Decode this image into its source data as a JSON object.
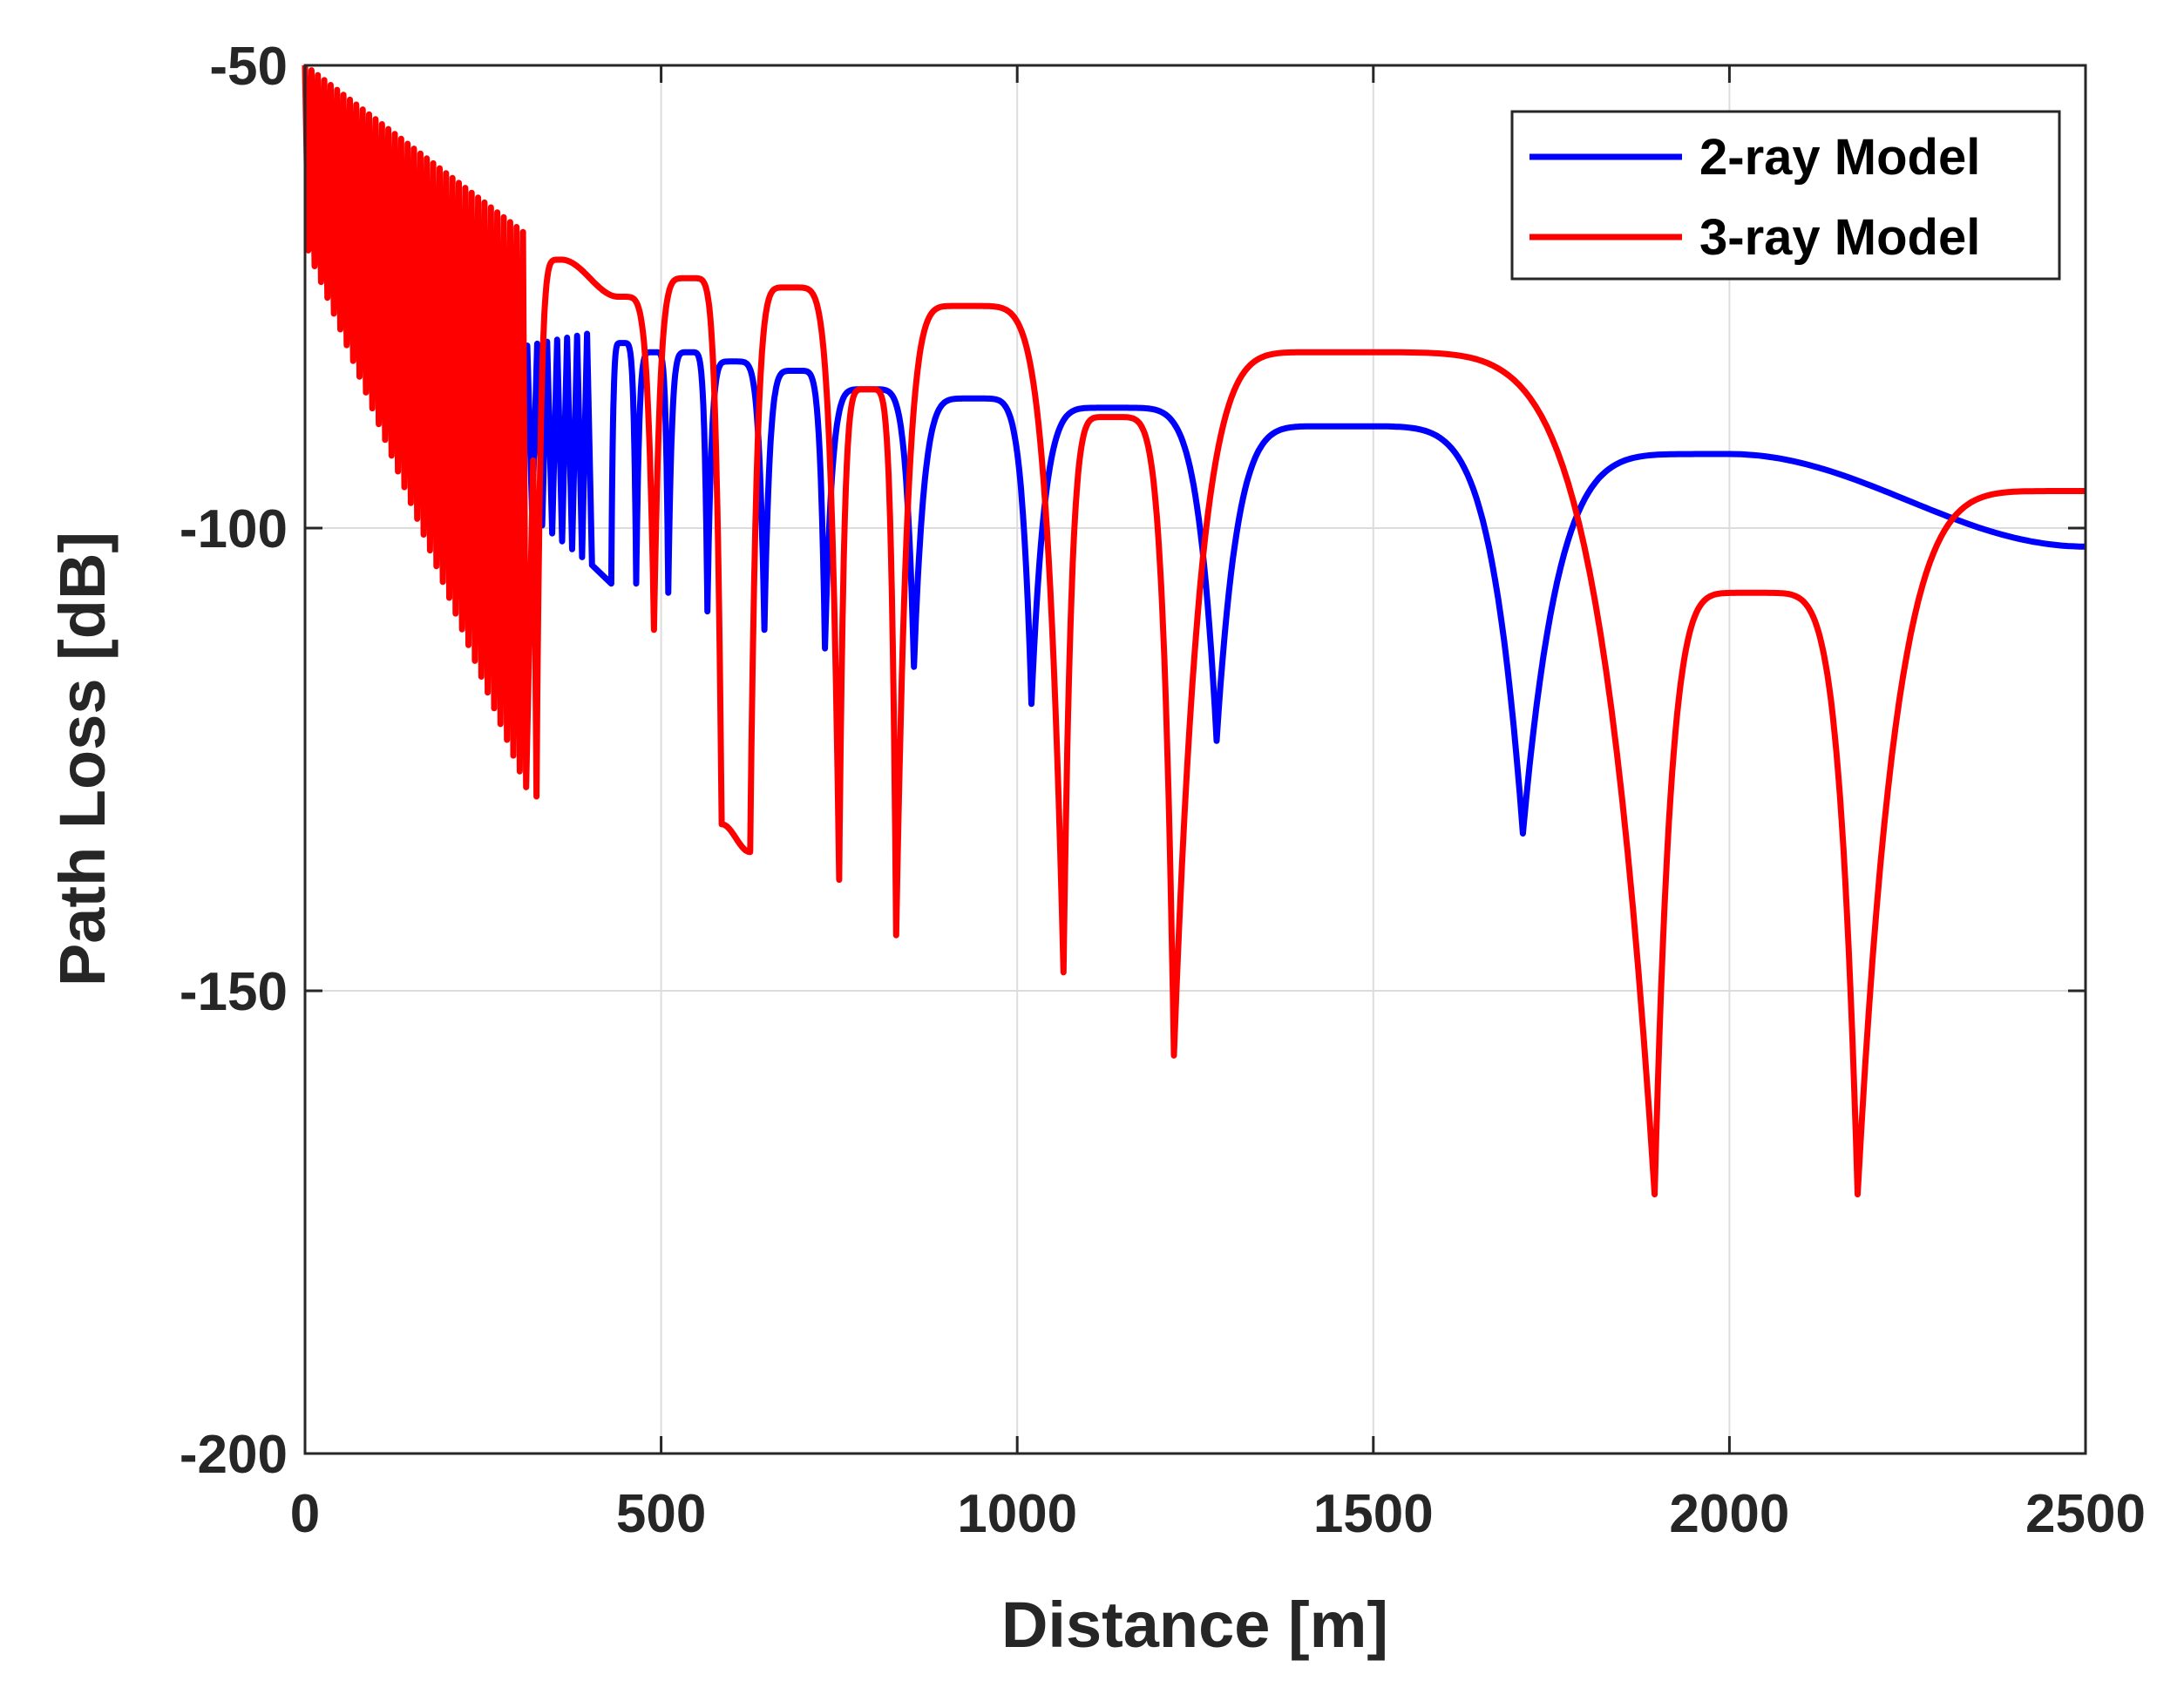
{
  "chart_data": {
    "type": "line",
    "title": "",
    "xlabel": "Distance [m]",
    "ylabel": "Path Loss [dB]",
    "xlim": [
      0,
      2500
    ],
    "ylim": [
      -200,
      -50
    ],
    "x_ticks": [
      0,
      500,
      1000,
      1500,
      2000,
      2500
    ],
    "y_ticks": [
      -200,
      -150,
      -100,
      -50
    ],
    "x_tick_labels": [
      "0",
      "500",
      "1000",
      "1500",
      "2000",
      "2500"
    ],
    "y_tick_labels": [
      "-200",
      "-150",
      "-100",
      "-50"
    ],
    "grid": true,
    "legend_position": "top-right",
    "series": [
      {
        "name": "2-ray Model",
        "color": "#0000ff",
        "nulls": [
          {
            "x": 430,
            "y": -106
          },
          {
            "x": 465,
            "y": -106
          },
          {
            "x": 510,
            "y": -107
          },
          {
            "x": 565,
            "y": -109
          },
          {
            "x": 645,
            "y": -111
          },
          {
            "x": 730,
            "y": -113
          },
          {
            "x": 855,
            "y": -115
          },
          {
            "x": 1020,
            "y": -119
          },
          {
            "x": 1280,
            "y": -123
          },
          {
            "x": 1710,
            "y": -133
          }
        ],
        "peaks": [
          {
            "x": 445,
            "y": -80
          },
          {
            "x": 490,
            "y": -81
          },
          {
            "x": 540,
            "y": -81
          },
          {
            "x": 600,
            "y": -82
          },
          {
            "x": 690,
            "y": -83
          },
          {
            "x": 790,
            "y": -85
          },
          {
            "x": 940,
            "y": -86
          },
          {
            "x": 1130,
            "y": -87
          },
          {
            "x": 1450,
            "y": -89
          },
          {
            "x": 2000,
            "y": -92
          },
          {
            "x": 2500,
            "y": -102
          }
        ]
      },
      {
        "name": "3-ray Model",
        "color": "#ff0000",
        "nulls": [
          {
            "x": 325,
            "y": -129
          },
          {
            "x": 490,
            "y": -111
          },
          {
            "x": 585,
            "y": -132
          },
          {
            "x": 625,
            "y": -135
          },
          {
            "x": 750,
            "y": -138
          },
          {
            "x": 830,
            "y": -144
          },
          {
            "x": 1065,
            "y": -148
          },
          {
            "x": 1220,
            "y": -157
          },
          {
            "x": 1895,
            "y": -172
          },
          {
            "x": 2180,
            "y": -172
          }
        ],
        "peaks": [
          {
            "x": 10,
            "y": -50
          },
          {
            "x": 60,
            "y": -55
          },
          {
            "x": 130,
            "y": -60
          },
          {
            "x": 200,
            "y": -63
          },
          {
            "x": 290,
            "y": -66
          },
          {
            "x": 360,
            "y": -71
          },
          {
            "x": 440,
            "y": -75
          },
          {
            "x": 540,
            "y": -73
          },
          {
            "x": 680,
            "y": -74
          },
          {
            "x": 790,
            "y": -85
          },
          {
            "x": 925,
            "y": -76
          },
          {
            "x": 1130,
            "y": -88
          },
          {
            "x": 1440,
            "y": -81
          },
          {
            "x": 2030,
            "y": -107
          },
          {
            "x": 2500,
            "y": -96
          }
        ]
      }
    ]
  }
}
